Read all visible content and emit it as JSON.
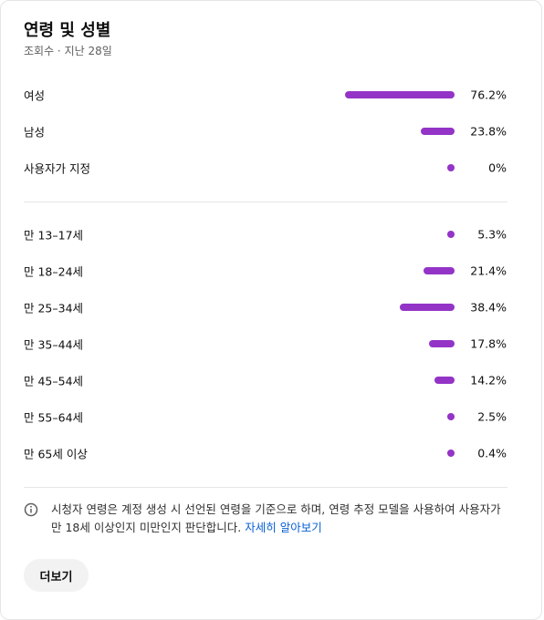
{
  "header": {
    "title": "연령 및 성별",
    "subtitle": "조회수 · 지난 28일"
  },
  "chart_data": [
    {
      "type": "bar",
      "categories": [
        "여성",
        "남성",
        "사용자가 지정"
      ],
      "values": [
        76.2,
        23.8,
        0
      ],
      "value_labels": [
        "76.2%",
        "23.8%",
        "0%"
      ],
      "color": "#9334c7"
    },
    {
      "type": "bar",
      "categories": [
        "만 13–17세",
        "만 18–24세",
        "만 25–34세",
        "만 35–44세",
        "만 45–54세",
        "만 55–64세",
        "만 65세 이상"
      ],
      "values": [
        5.3,
        21.4,
        38.4,
        17.8,
        14.2,
        2.5,
        0.4
      ],
      "value_labels": [
        "5.3%",
        "21.4%",
        "38.4%",
        "17.8%",
        "14.2%",
        "2.5%",
        "0.4%"
      ],
      "color": "#9334c7"
    }
  ],
  "footer": {
    "note": "시청자 연령은 계정 생성 시 선언된 연령을 기준으로 하며, 연령 추정 모델을 사용하여 사용자가 만 18세 이상인지 미만인지 판단합니다.",
    "link": "자세히 알아보기",
    "button": "더보기"
  }
}
